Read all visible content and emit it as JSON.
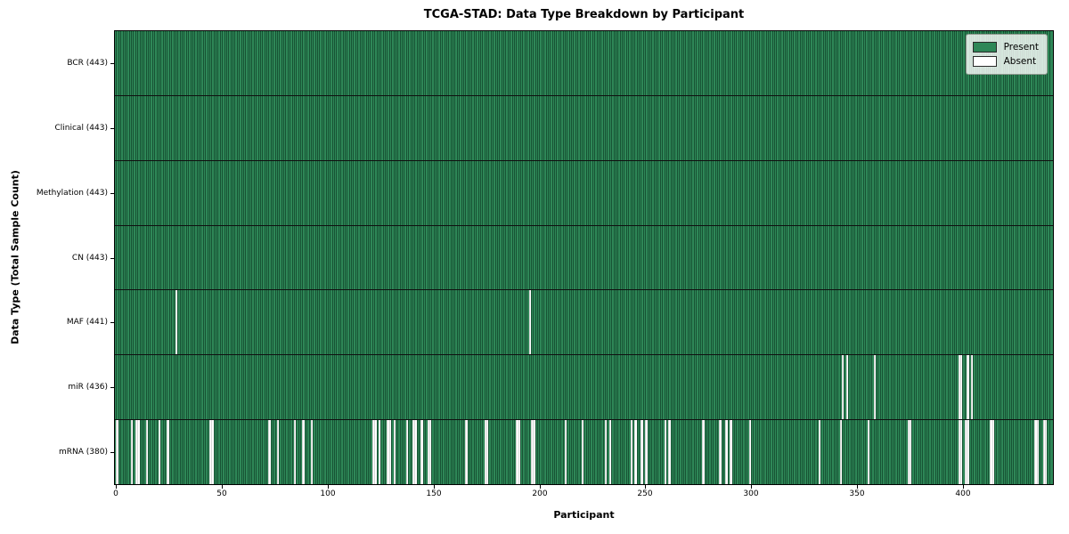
{
  "title": "TCGA-STAD: Data Type Breakdown by Participant",
  "x_axis": {
    "label": "Participant"
  },
  "y_axis": {
    "label": "Data Type (Total Sample Count)"
  },
  "legend": {
    "items": [
      {
        "label": "Present",
        "color": "#2e8757"
      },
      {
        "label": "Absent",
        "color": "#ffffff"
      }
    ]
  },
  "chart_data": {
    "type": "heatmap",
    "title": "TCGA-STAD: Data Type Breakdown by Participant",
    "xlabel": "Participant",
    "ylabel": "Data Type (Total Sample Count)",
    "n_participants": 443,
    "x_tick_values": [
      0,
      50,
      100,
      150,
      200,
      250,
      300,
      350,
      400
    ],
    "value_legend": {
      "present": "Present",
      "absent": "Absent"
    },
    "colors": {
      "present": "#2e8757",
      "absent": "#ffffff",
      "cell_edge": "#0a2818",
      "row_divider": "#101010"
    },
    "rows": [
      {
        "label": "BCR (443)",
        "data_type": "BCR",
        "total_samples": 443,
        "absent_participants": []
      },
      {
        "label": "Clinical (443)",
        "data_type": "Clinical",
        "total_samples": 443,
        "absent_participants": []
      },
      {
        "label": "Methylation (443)",
        "data_type": "Methylation",
        "total_samples": 443,
        "absent_participants": []
      },
      {
        "label": "CN (443)",
        "data_type": "CN",
        "total_samples": 443,
        "absent_participants": []
      },
      {
        "label": "MAF (441)",
        "data_type": "MAF",
        "total_samples": 441,
        "absent_participants": [
          29,
          196
        ]
      },
      {
        "label": "miR (436)",
        "data_type": "miR",
        "total_samples": 436,
        "absent_participants": [
          344,
          346,
          359,
          399,
          400,
          403,
          405
        ]
      },
      {
        "label": "mRNA (380)",
        "data_type": "mRNA",
        "total_samples": 380,
        "absent_participants": [
          1,
          8,
          10,
          11,
          15,
          21,
          25,
          45,
          46,
          73,
          77,
          85,
          89,
          93,
          122,
          123,
          125,
          129,
          130,
          132,
          138,
          141,
          142,
          145,
          148,
          149,
          166,
          175,
          176,
          190,
          191,
          197,
          198,
          213,
          221,
          232,
          234,
          244,
          246,
          249,
          251,
          260,
          262,
          278,
          286,
          289,
          291,
          300,
          333,
          343,
          356,
          375,
          376,
          399,
          400,
          402,
          403,
          414,
          415,
          435,
          436,
          439,
          440
        ]
      }
    ]
  }
}
